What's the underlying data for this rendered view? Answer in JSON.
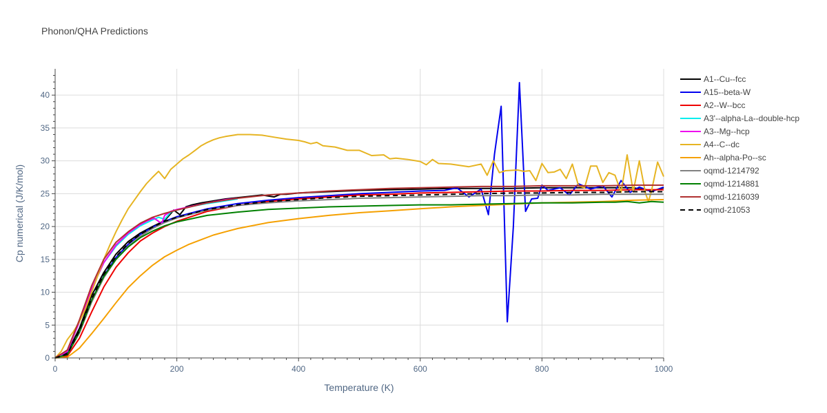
{
  "chart_data": {
    "type": "line",
    "title": "Phonon/QHA Predictions",
    "xlabel": "Temperature (K)",
    "ylabel": "Cp numerical (J/K/mol)",
    "xlim": [
      0,
      1000
    ],
    "ylim": [
      0,
      44
    ],
    "xticks": [
      0,
      200,
      400,
      600,
      800,
      1000
    ],
    "yticks": [
      0,
      5,
      10,
      15,
      20,
      25,
      30,
      35,
      40
    ],
    "grid": true,
    "legend_position": "right",
    "series": [
      {
        "name": "A1--Cu--fcc",
        "color": "#000000",
        "dash": "solid",
        "x": [
          0,
          20,
          40,
          60,
          80,
          100,
          120,
          140,
          160,
          180,
          195,
          205,
          215,
          225,
          240,
          260,
          280,
          300,
          320,
          340,
          360,
          370,
          380,
          400,
          420,
          450,
          500,
          550,
          600,
          650,
          700,
          750,
          800,
          850,
          900,
          950,
          980,
          1000
        ],
        "y": [
          0,
          0.8,
          4.5,
          9.5,
          13.0,
          15.8,
          17.7,
          19.0,
          20.0,
          20.9,
          22.5,
          21.8,
          23.0,
          23.3,
          23.6,
          23.9,
          24.2,
          24.4,
          24.6,
          24.8,
          24.5,
          24.9,
          24.9,
          25.1,
          25.2,
          25.3,
          25.5,
          25.6,
          25.7,
          25.8,
          25.8,
          25.8,
          25.9,
          25.9,
          25.9,
          25.9,
          25.4,
          25.9
        ]
      },
      {
        "name": "A15--beta-W",
        "color": "#0000ee",
        "dash": "solid",
        "x": [
          0,
          20,
          40,
          60,
          80,
          100,
          120,
          140,
          160,
          180,
          200,
          250,
          300,
          350,
          400,
          450,
          500,
          550,
          600,
          640,
          660,
          680,
          700,
          712,
          722,
          733,
          743,
          753,
          763,
          773,
          783,
          793,
          800,
          810,
          830,
          845,
          860,
          880,
          900,
          915,
          930,
          945,
          960,
          980,
          1000
        ],
        "y": [
          0,
          0.6,
          4.0,
          8.8,
          12.5,
          15.3,
          17.3,
          18.8,
          19.9,
          20.8,
          21.5,
          22.7,
          23.5,
          24.0,
          24.4,
          24.7,
          25.0,
          25.2,
          25.4,
          25.5,
          25.9,
          24.5,
          25.7,
          21.8,
          31.0,
          38.3,
          5.5,
          20.0,
          41.9,
          22.3,
          24.2,
          24.3,
          26.3,
          25.5,
          25.9,
          24.8,
          26.5,
          25.7,
          26.2,
          24.5,
          27.0,
          25.2,
          26.0,
          25.3,
          26.0
        ]
      },
      {
        "name": "A2--W--bcc",
        "color": "#ee0000",
        "dash": "solid",
        "x": [
          0,
          20,
          40,
          60,
          80,
          100,
          120,
          140,
          160,
          180,
          200,
          250,
          300,
          350,
          400,
          450,
          500,
          550,
          600,
          650,
          700,
          750,
          800,
          850,
          900,
          950,
          1000
        ],
        "y": [
          0,
          0.3,
          3.0,
          7.0,
          10.8,
          13.8,
          16.0,
          17.8,
          19.0,
          20.0,
          20.8,
          22.3,
          23.2,
          23.8,
          24.2,
          24.5,
          24.8,
          24.9,
          25.1,
          25.2,
          25.3,
          25.4,
          25.4,
          25.5,
          25.5,
          25.6,
          25.6
        ]
      },
      {
        "name": "A3'--alpha-La--double-hcp",
        "color": "#00eeee",
        "dash": "solid",
        "x": [
          0,
          20,
          40,
          60,
          80,
          100,
          120,
          140,
          160,
          170,
          180,
          190,
          200,
          220,
          250,
          300
        ],
        "y": [
          0,
          1.0,
          5.5,
          10.5,
          14.5,
          17.0,
          18.8,
          20.1,
          21.0,
          21.4,
          21.1,
          22.2,
          22.5,
          23.0,
          23.5,
          24.2
        ]
      },
      {
        "name": "A3--Mg--hcp",
        "color": "#ee00ee",
        "dash": "solid",
        "x": [
          0,
          20,
          40,
          60,
          80,
          100,
          120,
          140,
          150,
          162,
          170,
          175,
          180,
          190,
          200,
          220,
          250,
          280,
          300
        ],
        "y": [
          0,
          1.0,
          5.5,
          10.5,
          14.5,
          17.2,
          19.0,
          20.3,
          20.8,
          21.3,
          20.8,
          20.4,
          21.7,
          22.3,
          22.6,
          23.0,
          23.6,
          24.1,
          24.3
        ]
      },
      {
        "name": "A4--C--dc",
        "color": "#e6b422",
        "dash": "solid",
        "x": [
          0,
          10,
          20,
          30,
          40,
          50,
          60,
          70,
          80,
          90,
          100,
          110,
          120,
          130,
          140,
          150,
          160,
          170,
          180,
          190,
          200,
          210,
          220,
          230,
          240,
          250,
          260,
          270,
          280,
          300,
          320,
          340,
          360,
          380,
          400,
          410,
          420,
          430,
          440,
          460,
          480,
          500,
          520,
          540,
          550,
          560,
          580,
          600,
          610,
          620,
          630,
          650,
          680,
          700,
          710,
          720,
          730,
          740,
          760,
          770,
          780,
          790,
          800,
          810,
          820,
          830,
          840,
          850,
          860,
          870,
          880,
          890,
          900,
          910,
          920,
          930,
          940,
          950,
          960,
          970,
          975,
          980,
          990,
          1000
        ],
        "y": [
          0,
          1.0,
          2.8,
          4.0,
          5.5,
          7.5,
          10.0,
          12.5,
          15.0,
          17.2,
          19.2,
          21.0,
          22.7,
          24.0,
          25.3,
          26.5,
          27.5,
          28.4,
          27.3,
          28.7,
          29.5,
          30.3,
          30.9,
          31.6,
          32.3,
          32.8,
          33.2,
          33.5,
          33.7,
          34.0,
          34.0,
          33.9,
          33.6,
          33.3,
          33.1,
          32.9,
          32.6,
          32.8,
          32.3,
          32.1,
          31.6,
          31.6,
          30.8,
          30.9,
          30.3,
          30.4,
          30.2,
          29.9,
          29.4,
          30.2,
          29.6,
          29.5,
          29.1,
          29.5,
          27.8,
          30.0,
          28.2,
          28.5,
          28.6,
          28.4,
          28.5,
          27.0,
          29.6,
          28.2,
          28.3,
          28.7,
          27.3,
          29.5,
          26.2,
          25.9,
          29.2,
          29.2,
          26.7,
          28.2,
          27.8,
          25.2,
          30.9,
          25.3,
          30.0,
          25.1,
          23.8,
          25.4,
          29.8,
          27.6
        ]
      },
      {
        "name": "Ah--alpha-Po--sc",
        "color": "#f5a000",
        "dash": "solid",
        "x": [
          0,
          20,
          40,
          60,
          80,
          100,
          120,
          140,
          160,
          180,
          200,
          220,
          240,
          260,
          280,
          300,
          350,
          400,
          450,
          500,
          550,
          600,
          650,
          700,
          750,
          800,
          850,
          900,
          950,
          1000
        ],
        "y": [
          0,
          0.1,
          1.5,
          3.7,
          6.0,
          8.4,
          10.7,
          12.5,
          14.1,
          15.4,
          16.4,
          17.3,
          18.0,
          18.7,
          19.2,
          19.7,
          20.6,
          21.2,
          21.7,
          22.1,
          22.4,
          22.7,
          23.0,
          23.2,
          23.4,
          23.6,
          23.7,
          23.8,
          24.0,
          24.1
        ]
      },
      {
        "name": "oqmd-1214792",
        "color": "#808080",
        "dash": "solid",
        "x": [
          0,
          20,
          40,
          60,
          80,
          100,
          120,
          140,
          160,
          180,
          200,
          250,
          300,
          350,
          400,
          450,
          500,
          550,
          600,
          650,
          700,
          750,
          800,
          850,
          900,
          950,
          1000
        ],
        "y": [
          0,
          0.5,
          3.8,
          8.5,
          12.2,
          15.0,
          17.0,
          18.5,
          19.7,
          20.6,
          21.3,
          22.5,
          23.2,
          23.6,
          23.9,
          24.1,
          24.3,
          24.4,
          24.5,
          24.6,
          24.7,
          24.7,
          24.8,
          24.8,
          24.9,
          24.9,
          24.9
        ]
      },
      {
        "name": "oqmd-1214881",
        "color": "#008000",
        "dash": "solid",
        "x": [
          0,
          20,
          40,
          60,
          80,
          100,
          120,
          140,
          160,
          180,
          200,
          250,
          300,
          350,
          400,
          450,
          500,
          550,
          600,
          650,
          700,
          750,
          800,
          850,
          900,
          920,
          940,
          960,
          980,
          1000
        ],
        "y": [
          0,
          0.5,
          4.0,
          8.8,
          12.4,
          15.0,
          16.9,
          18.3,
          19.3,
          20.1,
          20.7,
          21.7,
          22.2,
          22.6,
          22.8,
          23.0,
          23.1,
          23.2,
          23.3,
          23.3,
          23.4,
          23.5,
          23.6,
          23.6,
          23.7,
          23.7,
          23.8,
          23.6,
          23.8,
          23.7
        ]
      },
      {
        "name": "oqmd-1216039",
        "color": "#b03030",
        "dash": "solid",
        "x": [
          0,
          20,
          40,
          60,
          80,
          100,
          120,
          140,
          160,
          180,
          200,
          250,
          300,
          350,
          400,
          450,
          500,
          550,
          600,
          650,
          700,
          750,
          800,
          850,
          900,
          950,
          1000
        ],
        "y": [
          0,
          1.2,
          5.8,
          11.0,
          15.0,
          17.6,
          19.2,
          20.5,
          21.4,
          22.0,
          22.5,
          23.6,
          24.3,
          24.8,
          25.1,
          25.4,
          25.6,
          25.8,
          25.9,
          26.0,
          26.1,
          26.1,
          26.2,
          26.2,
          26.2,
          26.3,
          26.3
        ]
      },
      {
        "name": "oqmd-21053",
        "color": "#000000",
        "dash": "dashed",
        "x": [
          0,
          20,
          40,
          60,
          80,
          100,
          120,
          140,
          160,
          180,
          200,
          250,
          300,
          350,
          400,
          450,
          500,
          550,
          600,
          650,
          700,
          750,
          800,
          850,
          900,
          950,
          1000
        ],
        "y": [
          0,
          0.6,
          4.2,
          9.0,
          12.7,
          15.4,
          17.4,
          18.8,
          19.9,
          20.8,
          21.4,
          22.6,
          23.3,
          23.8,
          24.1,
          24.4,
          24.6,
          24.7,
          24.8,
          24.9,
          25.0,
          25.1,
          25.1,
          25.2,
          25.2,
          25.3,
          25.3
        ]
      }
    ]
  }
}
